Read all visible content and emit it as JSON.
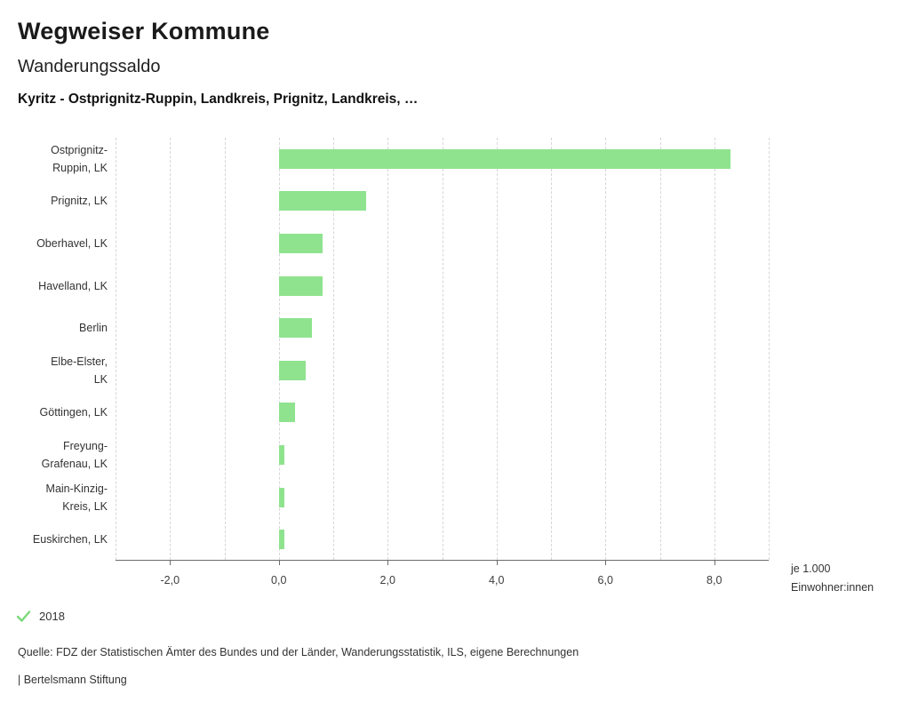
{
  "header": {
    "title": "Wegweiser Kommune",
    "subtitle": "Wanderungssaldo",
    "selection": "Kyritz - Ostprignitz-Ruppin, Landkreis, Prignitz, Landkreis, …"
  },
  "chart_data": {
    "type": "bar",
    "orientation": "horizontal",
    "title": "Wanderungssaldo",
    "categories": [
      "Ostprignitz-\nRuppin, LK",
      "Prignitz, LK",
      "Oberhavel, LK",
      "Havelland, LK",
      "Berlin",
      "Elbe-Elster,\nLK",
      "Göttingen, LK",
      "Freyung-\nGrafenau, LK",
      "Main-Kinzig-\nKreis, LK",
      "Euskirchen, LK"
    ],
    "series": [
      {
        "name": "2018",
        "values": [
          8.3,
          1.6,
          0.8,
          0.8,
          0.6,
          0.5,
          0.3,
          0.1,
          0.1,
          0.1
        ]
      }
    ],
    "values": [
      8.3,
      1.6,
      0.8,
      0.8,
      0.6,
      0.5,
      0.3,
      0.1,
      0.1,
      0.1
    ],
    "xlim": [
      -3,
      9
    ],
    "grid_step": 1,
    "grid": "dashed-vertical",
    "xticks": [
      -2,
      0,
      2,
      4,
      6,
      8
    ],
    "xtick_labels": [
      "-2,0",
      "0,0",
      "2,0",
      "4,0",
      "6,0",
      "8,0"
    ],
    "bar_color": "#8fe38f",
    "unit_label": "je 1.000\nEinwohner:innen",
    "xlabel": "je 1.000 Einwohner:innen",
    "ylabel": ""
  },
  "legend": {
    "label": "2018",
    "check_color": "#7bd87b"
  },
  "footer": {
    "source": "Quelle: FDZ der Statistischen Ämter des Bundes und der Länder, Wanderungsstatistik, ILS, eigene Berechnungen",
    "brand": "| Bertelsmann Stiftung"
  }
}
